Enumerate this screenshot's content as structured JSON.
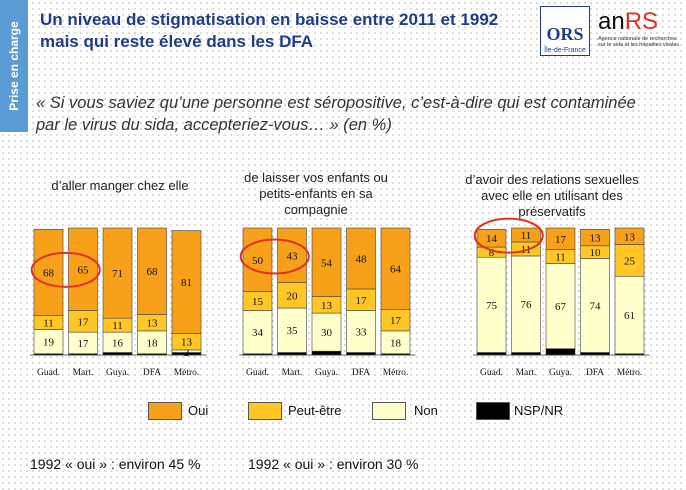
{
  "side_label": "Prise en charge",
  "title_line1": "Un niveau de stigmatisation en baisse entre 2011 et 1992",
  "title_line2": "mais qui reste élevé dans les DFA",
  "logos": {
    "ors": "ORS",
    "ors_sub": "Île-de-France",
    "anrs": "anRS",
    "anrs_sub": "Agence nationale de recherches sur le sida et les hépatites virales"
  },
  "question": "« Si vous saviez qu’une  personne est séropositive, c’est-à-dire qui est contaminée par le virus du sida, accepteriez-vous… » (en %)",
  "legend": [
    {
      "label": "Oui",
      "color": "#f7a11a"
    },
    {
      "label": "Peut-être",
      "color": "#ffc726"
    },
    {
      "label": "Non",
      "color": "#ffffcc"
    },
    {
      "label": "NSP/NR",
      "color": "#000000"
    }
  ],
  "notes": [
    "1992 « oui » : environ 45 %",
    "1992 « oui » : environ 30 %"
  ],
  "chart_data": [
    {
      "type": "bar",
      "stacked": true,
      "title": "d’aller manger chez elle",
      "categories": [
        "Guad.",
        "Mart.",
        "Guya.",
        "DFA",
        "Métro."
      ],
      "series": [
        {
          "name": "NSP/NR",
          "values": [
            1,
            1,
            2,
            1,
            2
          ]
        },
        {
          "name": "Non",
          "values": [
            19,
            17,
            16,
            18,
            2
          ]
        },
        {
          "name": "Peut-être",
          "values": [
            11,
            17,
            11,
            13,
            13
          ]
        },
        {
          "name": "Oui",
          "values": [
            68,
            65,
            71,
            68,
            81
          ]
        }
      ],
      "ylim": [
        0,
        100
      ],
      "circled": [
        "Guad.",
        "Mart."
      ]
    },
    {
      "type": "bar",
      "stacked": true,
      "title": "de laisser vos enfants ou petits-enfants en sa compagnie",
      "categories": [
        "Guad.",
        "Mart.",
        "Guya.",
        "DFA",
        "Métro."
      ],
      "series": [
        {
          "name": "NSP/NR",
          "values": [
            1,
            2,
            3,
            2,
            1
          ]
        },
        {
          "name": "Non",
          "values": [
            34,
            35,
            30,
            33,
            18
          ]
        },
        {
          "name": "Peut-être",
          "values": [
            15,
            20,
            13,
            17,
            17
          ]
        },
        {
          "name": "Oui",
          "values": [
            50,
            43,
            54,
            48,
            64
          ]
        }
      ],
      "ylim": [
        0,
        100
      ],
      "circled": [
        "Guad.",
        "Mart."
      ]
    },
    {
      "type": "bar",
      "stacked": true,
      "title": "d’avoir des relations sexuelles avec elle en utilisant des préservatifs",
      "categories": [
        "Guad.",
        "Mart.",
        "Guya.",
        "DFA",
        "Métro."
      ],
      "series": [
        {
          "name": "NSP/NR",
          "values": [
            2,
            2,
            5,
            2,
            1
          ]
        },
        {
          "name": "Non",
          "values": [
            75,
            76,
            67,
            74,
            61
          ]
        },
        {
          "name": "Peut-être",
          "values": [
            8,
            11,
            11,
            10,
            25
          ]
        },
        {
          "name": "Oui",
          "values": [
            14,
            11,
            17,
            13,
            13
          ]
        }
      ],
      "ylim": [
        0,
        100
      ],
      "circled": [
        "Guad.",
        "Mart."
      ]
    }
  ]
}
